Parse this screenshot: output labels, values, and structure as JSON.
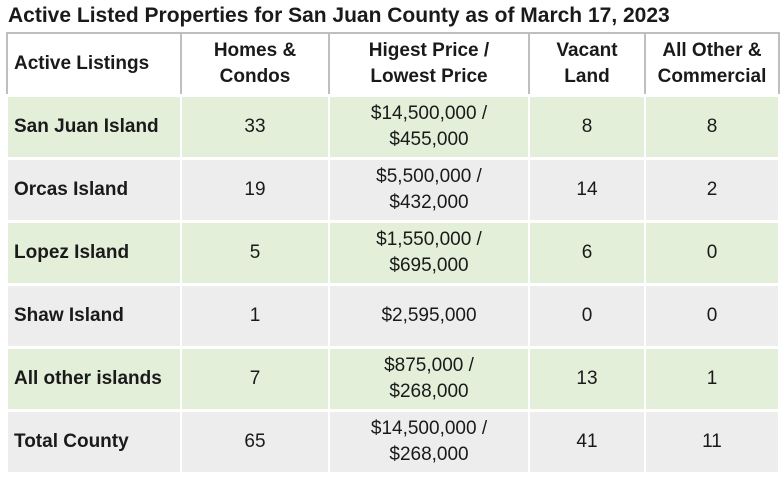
{
  "title": "Active Listed Properties for San Juan County as of March 17, 2023",
  "table": {
    "headers": {
      "col1": "Active Listings",
      "col2_line1": "Homes &",
      "col2_line2": "Condos",
      "col3_line1": "Higest Price /",
      "col3_line2": "Lowest Price",
      "col4_line1": "Vacant",
      "col4_line2": "Land",
      "col5_line1": "All Other &",
      "col5_line2": "Commercial"
    },
    "rows": [
      {
        "name": "San Juan Island",
        "homes": "33",
        "price_line1": "$14,500,000 /",
        "price_line2": "$455,000",
        "vacant": "8",
        "other": "8"
      },
      {
        "name": "Orcas Island",
        "homes": "19",
        "price_line1": "$5,500,000 /",
        "price_line2": "$432,000",
        "vacant": "14",
        "other": "2"
      },
      {
        "name": "Lopez Island",
        "homes": "5",
        "price_line1": "$1,550,000 /",
        "price_line2": "$695,000",
        "vacant": "6",
        "other": "0"
      },
      {
        "name": "Shaw Island",
        "homes": "1",
        "price_line1": "$2,595,000",
        "price_line2": "",
        "vacant": "0",
        "other": "0"
      },
      {
        "name": "All other islands",
        "homes": "7",
        "price_line1": "$875,000 /",
        "price_line2": "$268,000",
        "vacant": "13",
        "other": "1"
      },
      {
        "name": "Total County",
        "homes": "65",
        "price_line1": "$14,500,000 /",
        "price_line2": "$268,000",
        "vacant": "41",
        "other": "11"
      }
    ]
  },
  "colors": {
    "row_green": "#e3efd9",
    "row_gray": "#ededed",
    "header_border": "#bfbfbf"
  }
}
